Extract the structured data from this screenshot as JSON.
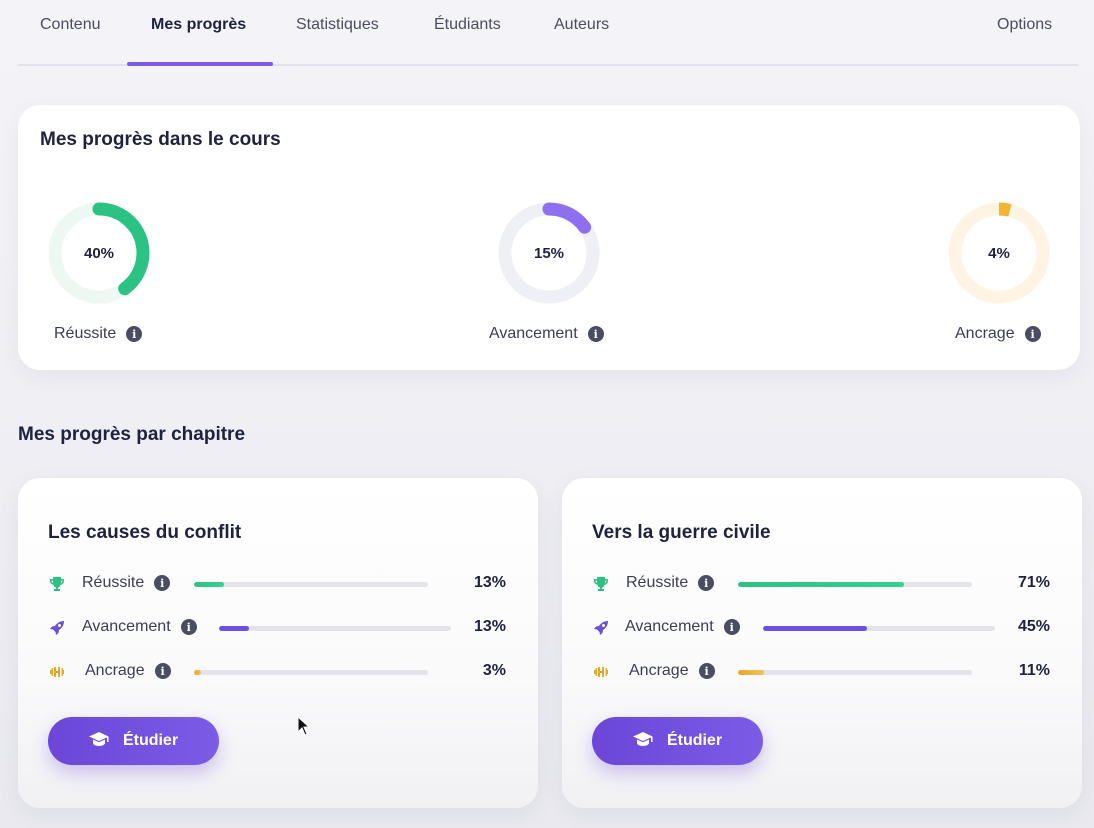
{
  "tabs": [
    {
      "label": "Contenu",
      "active": false
    },
    {
      "label": "Mes progrès",
      "active": true
    },
    {
      "label": "Statistiques",
      "active": false
    },
    {
      "label": "Étudiants",
      "active": false
    },
    {
      "label": "Auteurs",
      "active": false
    }
  ],
  "options_label": "Options",
  "overall": {
    "title": "Mes progrès dans le cours",
    "metrics": [
      {
        "label": "Réussite",
        "value_text": "40%",
        "value": 40,
        "color": "#2bc283",
        "track": "#edf8f2"
      },
      {
        "label": "Avancement",
        "value_text": "15%",
        "value": 15,
        "color": "#8e6ff0",
        "track": "#efeff6"
      },
      {
        "label": "Ancrage",
        "value_text": "4%",
        "value": 4,
        "color": "#f2b433",
        "track": "#fff4e3"
      }
    ]
  },
  "chapters_title": "Mes progrès par chapitre",
  "chapters": [
    {
      "title": "Les causes du conflit",
      "rows": [
        {
          "icon": "trophy-icon",
          "label": "Réussite",
          "value_text": "13%",
          "value": 13
        },
        {
          "icon": "rocket-icon",
          "label": "Avancement",
          "value_text": "13%",
          "value": 13
        },
        {
          "icon": "dumbbell-icon",
          "label": "Ancrage",
          "value_text": "3%",
          "value": 3
        }
      ],
      "button_label": "Étudier"
    },
    {
      "title": "Vers la guerre civile",
      "rows": [
        {
          "icon": "trophy-icon",
          "label": "Réussite",
          "value_text": "71%",
          "value": 71
        },
        {
          "icon": "rocket-icon",
          "label": "Avancement",
          "value_text": "45%",
          "value": 45
        },
        {
          "icon": "dumbbell-icon",
          "label": "Ancrage",
          "value_text": "11%",
          "value": 11
        }
      ],
      "button_label": "Étudier"
    }
  ],
  "colors": {
    "accent": "#7b5ce6",
    "success": "#2bc283",
    "progress": "#6b4fe0",
    "anchor": "#e8a92a"
  },
  "info_glyph": "i"
}
